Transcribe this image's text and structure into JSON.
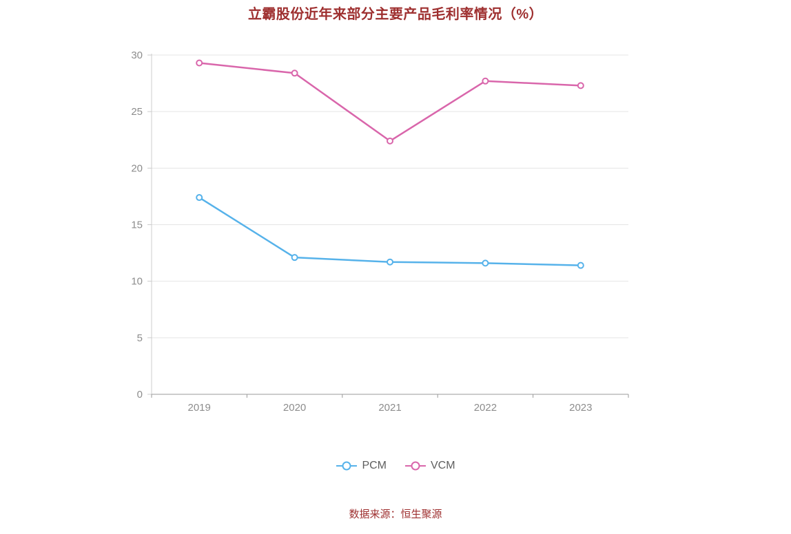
{
  "page": {
    "title_color": "#9e2f2f",
    "source_color": "#9e2f2f"
  },
  "chart_data": {
    "type": "line",
    "title": "立霸股份近年来部分主要产品毛利率情况（%）",
    "source": "数据来源：恒生聚源",
    "categories": [
      "2019",
      "2020",
      "2021",
      "2022",
      "2023"
    ],
    "series": [
      {
        "name": "PCM",
        "color": "#56b2ea",
        "values": [
          17.4,
          12.1,
          11.7,
          11.6,
          11.4
        ]
      },
      {
        "name": "VCM",
        "color": "#d966ab",
        "values": [
          29.3,
          28.4,
          22.4,
          27.7,
          27.3
        ]
      }
    ],
    "ylim": [
      0,
      30
    ],
    "yticks": [
      0,
      5,
      10,
      15,
      20,
      25,
      30
    ],
    "xlabel": "",
    "ylabel": "",
    "grid": true,
    "legend_position": "bottom",
    "colors": {
      "grid": "#e5e5e5",
      "x_axis": "#999999",
      "y_axis": "#cccccc",
      "tick_label": "#8c8c8c",
      "marker_fill": "#ffffff"
    }
  }
}
